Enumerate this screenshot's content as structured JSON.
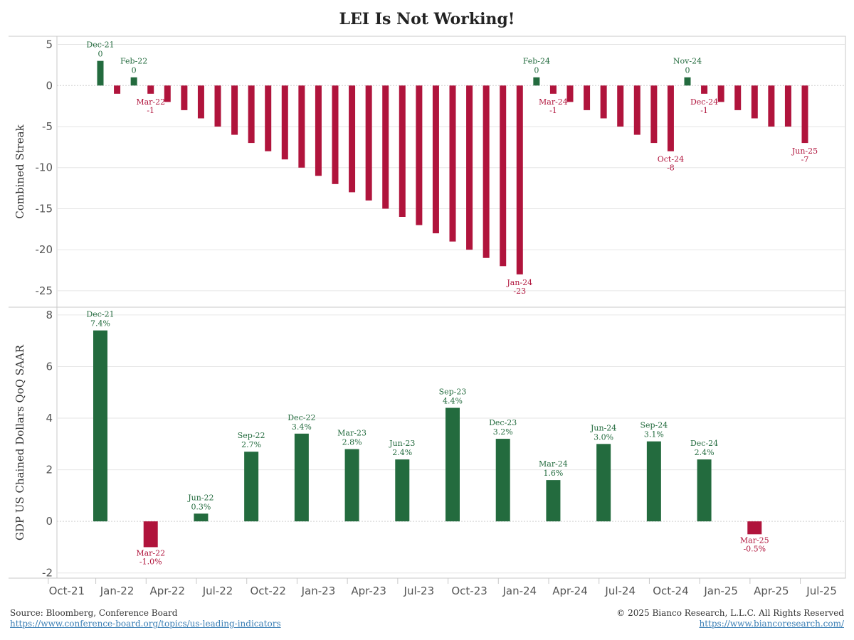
{
  "title": "LEI Is Not Working!",
  "colors": {
    "positive": "#236b3e",
    "negative": "#b0143c",
    "grid": "#e6e6e6",
    "axis": "#c8c8c8",
    "text": "#555555"
  },
  "footer": {
    "source": "Source: Bloomberg, Conference Board",
    "source_link": "https://www.conference-board.org/topics/us-leading-indicators",
    "copyright": "© 2025 Bianco Research, L.L.C. All Rights Reserved",
    "copyright_link": "https://www.biancoresearch.com/"
  },
  "chart_data": [
    {
      "type": "bar",
      "ylabel": "Combined Streak",
      "ylim": [
        -27,
        6
      ],
      "yticks": [
        5,
        0,
        -5,
        -10,
        -15,
        -20,
        -25
      ],
      "x_start": "Dec-21",
      "categories": [
        "Dec-21",
        "Jan-22",
        "Feb-22",
        "Mar-22",
        "Apr-22",
        "May-22",
        "Jun-22",
        "Jul-22",
        "Aug-22",
        "Sep-22",
        "Oct-22",
        "Nov-22",
        "Dec-22",
        "Jan-23",
        "Feb-23",
        "Mar-23",
        "Apr-23",
        "May-23",
        "Jun-23",
        "Jul-23",
        "Aug-23",
        "Sep-23",
        "Oct-23",
        "Nov-23",
        "Dec-23",
        "Jan-24",
        "Feb-24",
        "Mar-24",
        "Apr-24",
        "May-24",
        "Jun-24",
        "Jul-24",
        "Aug-24",
        "Sep-24",
        "Oct-24",
        "Nov-24",
        "Dec-24",
        "Jan-25",
        "Feb-25",
        "Mar-25",
        "Apr-25",
        "May-25",
        "Jun-25"
      ],
      "values": [
        3,
        -1,
        1,
        -1,
        -2,
        -3,
        -4,
        -5,
        -6,
        -7,
        -8,
        -9,
        -10,
        -11,
        -12,
        -13,
        -14,
        -15,
        -16,
        -17,
        -18,
        -19,
        -20,
        -21,
        -22,
        -23,
        1,
        -1,
        -2,
        -3,
        -4,
        -5,
        -6,
        -7,
        -8,
        1,
        -1,
        -2,
        -3,
        -4,
        -5,
        -5,
        -7
      ],
      "annotations": [
        {
          "index": 0,
          "date": "Dec-21",
          "label": "0"
        },
        {
          "index": 2,
          "date": "Feb-22",
          "label": "0"
        },
        {
          "index": 3,
          "date": "Mar-22",
          "label": "-1"
        },
        {
          "index": 25,
          "date": "Jan-24",
          "label": "-23"
        },
        {
          "index": 26,
          "date": "Feb-24",
          "label": "0"
        },
        {
          "index": 27,
          "date": "Mar-24",
          "label": "-1"
        },
        {
          "index": 34,
          "date": "Oct-24",
          "label": "-8"
        },
        {
          "index": 35,
          "date": "Nov-24",
          "label": "0"
        },
        {
          "index": 36,
          "date": "Dec-24",
          "label": "-1"
        },
        {
          "index": 42,
          "date": "Jun-25",
          "label": "-7"
        }
      ]
    },
    {
      "type": "bar",
      "ylabel": "GDP US Chained Dollars QoQ SAAR",
      "ylim": [
        -2.2,
        8.3
      ],
      "yticks": [
        8,
        6,
        4,
        2,
        0,
        -2
      ],
      "categories": [
        "Dec-21",
        "Mar-22",
        "Jun-22",
        "Sep-22",
        "Dec-22",
        "Mar-23",
        "Jun-23",
        "Sep-23",
        "Dec-23",
        "Mar-24",
        "Jun-24",
        "Sep-24",
        "Dec-24",
        "Mar-25"
      ],
      "month_index": [
        0,
        3,
        6,
        9,
        12,
        15,
        18,
        21,
        24,
        27,
        30,
        33,
        36,
        39
      ],
      "values": [
        7.4,
        -1.0,
        0.3,
        2.7,
        3.4,
        2.8,
        2.4,
        4.4,
        3.2,
        1.6,
        3.0,
        3.1,
        2.4,
        -0.5
      ],
      "labels": [
        "7.4%",
        "-1.0%",
        "0.3%",
        "2.7%",
        "3.4%",
        "2.8%",
        "2.4%",
        "4.4%",
        "3.2%",
        "1.6%",
        "3.0%",
        "3.1%",
        "2.4%",
        "-0.5%"
      ]
    }
  ],
  "x_axis": {
    "ticks": [
      "Oct-21",
      "Jan-22",
      "Apr-22",
      "Jul-22",
      "Oct-22",
      "Jan-23",
      "Apr-23",
      "Jul-23",
      "Oct-23",
      "Jan-24",
      "Apr-24",
      "Jul-24",
      "Oct-24",
      "Jan-25",
      "Apr-25",
      "Jul-25"
    ],
    "tick_month_index": [
      -2,
      1,
      4,
      7,
      10,
      13,
      16,
      19,
      22,
      25,
      28,
      31,
      34,
      37,
      40,
      43
    ]
  }
}
